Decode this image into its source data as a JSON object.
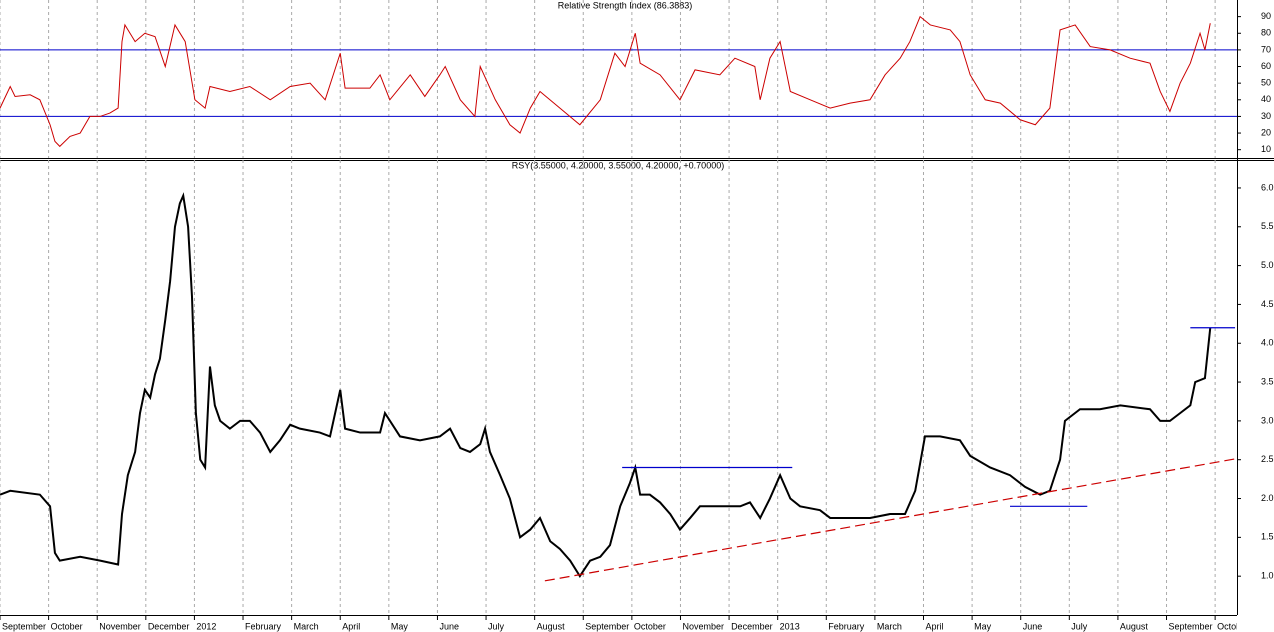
{
  "chart_data": [
    {
      "type": "line",
      "title": "Relative Strength Index (86.3883)",
      "color": "#cc0000",
      "x": [
        0,
        0.21,
        0.31,
        0.62,
        0.82,
        1.03,
        1.13,
        1.23,
        1.44,
        1.65,
        1.85,
        2.06,
        2.26,
        2.43,
        2.51,
        2.57,
        2.78,
        2.98,
        3.19,
        3.4,
        3.6,
        3.81,
        4.01,
        4.22,
        4.32,
        4.73,
        5.14,
        5.56,
        5.97,
        6.38,
        6.69,
        7.0,
        7.1,
        7.61,
        7.82,
        8.02,
        8.44,
        8.74,
        9.05,
        9.16,
        9.47,
        9.77,
        9.88,
        10.19,
        10.49,
        10.7,
        10.91,
        11.11,
        11.52,
        11.93,
        12.35,
        12.65,
        12.86,
        13.07,
        13.17,
        13.58,
        13.99,
        14.3,
        14.81,
        15.12,
        15.53,
        15.64,
        15.84,
        16.05,
        16.26,
        16.67,
        17.08,
        17.49,
        17.9,
        18.21,
        18.52,
        18.72,
        18.93,
        19.14,
        19.55,
        19.75,
        19.96,
        20.27,
        20.58,
        20.99,
        21.3,
        21.6,
        21.81,
        22.12,
        22.43,
        22.84,
        23.25,
        23.66,
        23.87,
        24.07,
        24.28,
        24.49,
        24.69,
        24.79,
        24.9
      ],
      "values": [
        35,
        48,
        42,
        43,
        40,
        25,
        15,
        12,
        18,
        20,
        30,
        30,
        32,
        35,
        75,
        85,
        75,
        80,
        78,
        60,
        85,
        75,
        40,
        35,
        48,
        45,
        48,
        40,
        48,
        50,
        40,
        68,
        47,
        47,
        55,
        40,
        55,
        42,
        55,
        60,
        40,
        30,
        60,
        40,
        25,
        20,
        35,
        45,
        35,
        25,
        40,
        68,
        60,
        80,
        62,
        55,
        40,
        58,
        55,
        65,
        60,
        40,
        65,
        75,
        45,
        40,
        35,
        38,
        40,
        55,
        65,
        75,
        90,
        85,
        82,
        75,
        55,
        40,
        38,
        28,
        25,
        35,
        82,
        85,
        72,
        70,
        65,
        62,
        45,
        33,
        50,
        62,
        80,
        70,
        86
      ],
      "hlines": {
        "values": [
          30,
          70
        ],
        "color": "#0000cc"
      },
      "xlim": [
        0,
        25.45
      ],
      "ylim": [
        5,
        100
      ],
      "yticks": [
        10,
        20,
        30,
        40,
        50,
        60,
        70,
        80,
        90
      ],
      "grid": true
    },
    {
      "type": "line",
      "title": "RSY(3.55000, 4.20000, 3.55000, 4.20000, +0.70000)",
      "color": "#000000",
      "x": [
        0,
        0.21,
        0.82,
        1.03,
        1.13,
        1.23,
        1.65,
        2.06,
        2.43,
        2.51,
        2.63,
        2.78,
        2.88,
        2.98,
        3.09,
        3.19,
        3.29,
        3.4,
        3.5,
        3.6,
        3.7,
        3.77,
        3.87,
        3.95,
        4.03,
        4.12,
        4.22,
        4.32,
        4.42,
        4.53,
        4.73,
        4.94,
        5.14,
        5.35,
        5.56,
        5.76,
        5.97,
        6.17,
        6.58,
        6.79,
        7.0,
        7.1,
        7.41,
        7.82,
        7.92,
        8.23,
        8.64,
        9.05,
        9.26,
        9.47,
        9.67,
        9.88,
        9.98,
        10.08,
        10.29,
        10.49,
        10.7,
        10.91,
        11.11,
        11.32,
        11.52,
        11.73,
        11.93,
        12.14,
        12.35,
        12.55,
        12.76,
        12.96,
        13.07,
        13.17,
        13.37,
        13.58,
        13.79,
        13.99,
        14.2,
        14.4,
        14.81,
        15.23,
        15.43,
        15.64,
        15.84,
        16.05,
        16.26,
        16.46,
        16.87,
        17.08,
        17.49,
        17.9,
        18.31,
        18.62,
        18.83,
        19.03,
        19.34,
        19.75,
        19.96,
        20.37,
        20.78,
        21.09,
        21.4,
        21.6,
        21.81,
        21.91,
        22.22,
        22.63,
        23.05,
        23.66,
        23.87,
        24.07,
        24.28,
        24.49,
        24.59,
        24.79,
        24.9
      ],
      "values": [
        2.05,
        2.1,
        2.05,
        1.9,
        1.3,
        1.2,
        1.25,
        1.2,
        1.15,
        1.8,
        2.3,
        2.6,
        3.1,
        3.4,
        3.3,
        3.6,
        3.8,
        4.3,
        4.8,
        5.5,
        5.8,
        5.9,
        5.5,
        4.6,
        3.1,
        2.5,
        2.4,
        3.7,
        3.2,
        3.0,
        2.9,
        3.0,
        3.0,
        2.85,
        2.6,
        2.75,
        2.95,
        2.9,
        2.85,
        2.8,
        3.4,
        2.9,
        2.85,
        2.85,
        3.1,
        2.8,
        2.75,
        2.8,
        2.9,
        2.65,
        2.6,
        2.7,
        2.9,
        2.6,
        2.3,
        2.0,
        1.5,
        1.6,
        1.75,
        1.45,
        1.35,
        1.2,
        1.0,
        1.2,
        1.25,
        1.4,
        1.9,
        2.2,
        2.4,
        2.05,
        2.05,
        1.95,
        1.8,
        1.6,
        1.75,
        1.9,
        1.9,
        1.9,
        1.95,
        1.75,
        2.0,
        2.3,
        2.0,
        1.9,
        1.85,
        1.75,
        1.75,
        1.75,
        1.8,
        1.8,
        2.1,
        2.8,
        2.8,
        2.75,
        2.55,
        2.4,
        2.3,
        2.15,
        2.05,
        2.1,
        2.5,
        3.0,
        3.15,
        3.15,
        3.2,
        3.15,
        3.0,
        3.0,
        3.1,
        3.2,
        3.5,
        3.55,
        4.2
      ],
      "lines": [
        {
          "color": "#0000cc",
          "x": [
            12.8,
            16.3
          ],
          "y": [
            2.4,
            2.4
          ]
        },
        {
          "color": "#0000cc",
          "x": [
            20.78,
            22.37
          ],
          "y": [
            1.9,
            1.9
          ]
        },
        {
          "color": "#0000cc",
          "x": [
            24.49,
            25.41
          ],
          "y": [
            4.2,
            4.2
          ]
        },
        {
          "color": "#cc0000",
          "dashed": true,
          "x": [
            11.21,
            25.41
          ],
          "y": [
            0.94,
            2.51
          ]
        }
      ],
      "xlim": [
        0,
        25.45
      ],
      "ylim": [
        0.5,
        6.36
      ],
      "yticks": [
        {
          "value": 1,
          "label": "1.0"
        },
        1.5,
        {
          "value": 2,
          "label": "2.0"
        },
        2.5,
        {
          "value": 3,
          "label": "3.0"
        },
        3.5,
        {
          "value": 4,
          "label": "4.0"
        },
        4.5,
        {
          "value": 5,
          "label": "5.0"
        },
        5.5,
        {
          "value": 6,
          "label": "6.0"
        }
      ],
      "xticks": [
        {
          "value": 0,
          "label": "September"
        },
        {
          "value": 1,
          "label": "October"
        },
        {
          "value": 2,
          "label": "November"
        },
        {
          "value": 3,
          "label": "December"
        },
        {
          "value": 4,
          "label": "2012"
        },
        {
          "value": 5,
          "label": "February"
        },
        {
          "value": 6,
          "label": "March"
        },
        {
          "value": 7,
          "label": "April"
        },
        {
          "value": 8,
          "label": "May"
        },
        {
          "value": 9,
          "label": "June"
        },
        {
          "value": 10,
          "label": "July"
        },
        {
          "value": 11,
          "label": "August"
        },
        {
          "value": 12,
          "label": "September"
        },
        {
          "value": 13,
          "label": "October"
        },
        {
          "value": 14,
          "label": "November"
        },
        {
          "value": 15,
          "label": "December"
        },
        {
          "value": 16,
          "label": "2013"
        },
        {
          "value": 17,
          "label": "February"
        },
        {
          "value": 18,
          "label": "March"
        },
        {
          "value": 19,
          "label": "April"
        },
        {
          "value": 20,
          "label": "May"
        },
        {
          "value": 21,
          "label": "June"
        },
        {
          "value": 22,
          "label": "July"
        },
        {
          "value": 23,
          "label": "August"
        },
        {
          "value": 24,
          "label": "September"
        },
        {
          "value": 25,
          "label": "Octob"
        }
      ],
      "grid": true
    }
  ]
}
